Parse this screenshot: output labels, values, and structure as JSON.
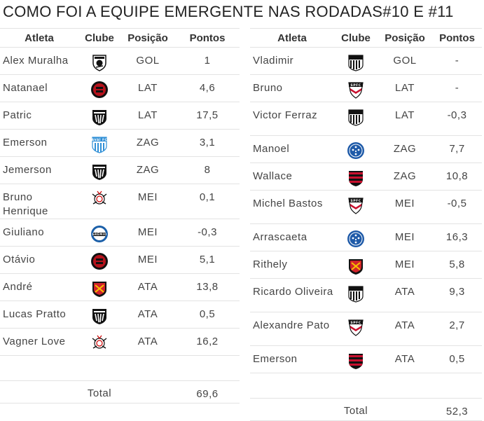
{
  "title": "COMO FOI A EQUIPE EMERGENTE NAS RODADAS#10 E #11",
  "headers": {
    "athlete": "Atleta",
    "club": "Clube",
    "position": "Posição",
    "points": "Pontos"
  },
  "left_rows": [
    {
      "name": "Alex Muralha",
      "club": "figueirense",
      "pos": "GOL",
      "pts": "1"
    },
    {
      "name": "Natanael",
      "club": "atletico-pr",
      "pos": "LAT",
      "pts": "4,6"
    },
    {
      "name": "Patric",
      "club": "atletico-mg",
      "pos": "LAT",
      "pts": "17,5"
    },
    {
      "name": "Emerson",
      "club": "avai",
      "pos": "ZAG",
      "pts": "3,1"
    },
    {
      "name": "Jemerson",
      "club": "atletico-mg",
      "pos": "ZAG",
      "pts": "8"
    },
    {
      "name": "Bruno Henrique",
      "club": "corinthians",
      "pos": "MEI",
      "pts": "0,1"
    },
    {
      "name": "Giuliano",
      "club": "gremio",
      "pos": "MEI",
      "pts": "-0,3"
    },
    {
      "name": "Otávio",
      "club": "atletico-pr",
      "pos": "MEI",
      "pts": "5,1"
    },
    {
      "name": "André",
      "club": "sport",
      "pos": "ATA",
      "pts": "13,8"
    },
    {
      "name": "Lucas Pratto",
      "club": "atletico-mg",
      "pos": "ATA",
      "pts": "0,5"
    },
    {
      "name": "Vagner Love",
      "club": "corinthians",
      "pos": "ATA",
      "pts": "16,2"
    }
  ],
  "right_rows": [
    {
      "name": "Vladimir",
      "club": "santos",
      "pos": "GOL",
      "pts": "-"
    },
    {
      "name": "Bruno",
      "club": "sao-paulo",
      "pos": "LAT",
      "pts": "-"
    },
    {
      "name": "Victor Ferraz",
      "club": "santos",
      "pos": "LAT",
      "pts": "-0,3"
    },
    {
      "name": "Manoel",
      "club": "cruzeiro",
      "pos": "ZAG",
      "pts": "7,7"
    },
    {
      "name": "Wallace",
      "club": "flamengo",
      "pos": "ZAG",
      "pts": "10,8"
    },
    {
      "name": "Michel Bastos",
      "club": "sao-paulo",
      "pos": "MEI",
      "pts": "-0,5"
    },
    {
      "name": "Arrascaeta",
      "club": "cruzeiro",
      "pos": "MEI",
      "pts": "16,3"
    },
    {
      "name": "Rithely",
      "club": "sport",
      "pos": "MEI",
      "pts": "5,8"
    },
    {
      "name": "Ricardo Oliveira",
      "club": "santos",
      "pos": "ATA",
      "pts": "9,3"
    },
    {
      "name": "Alexandre Pato",
      "club": "sao-paulo",
      "pos": "ATA",
      "pts": "2,7"
    },
    {
      "name": "Emerson",
      "club": "flamengo",
      "pos": "ATA",
      "pts": "0,5"
    }
  ],
  "totals": {
    "label": "Total",
    "left": "69,6",
    "right": "52,3"
  },
  "crest_text": {
    "avai": "AVAÍ FC",
    "sao-paulo": "SPFC",
    "gremio": "GRÊMIO"
  },
  "colors": {
    "border": "#e3e3e3",
    "text": "#444444",
    "flamengo": "#c8102e",
    "atletico-pr": "#b5121b",
    "sport": "#d2232a",
    "cruzeiro": "#1e5aa8",
    "avai": "#2f8fd6"
  }
}
